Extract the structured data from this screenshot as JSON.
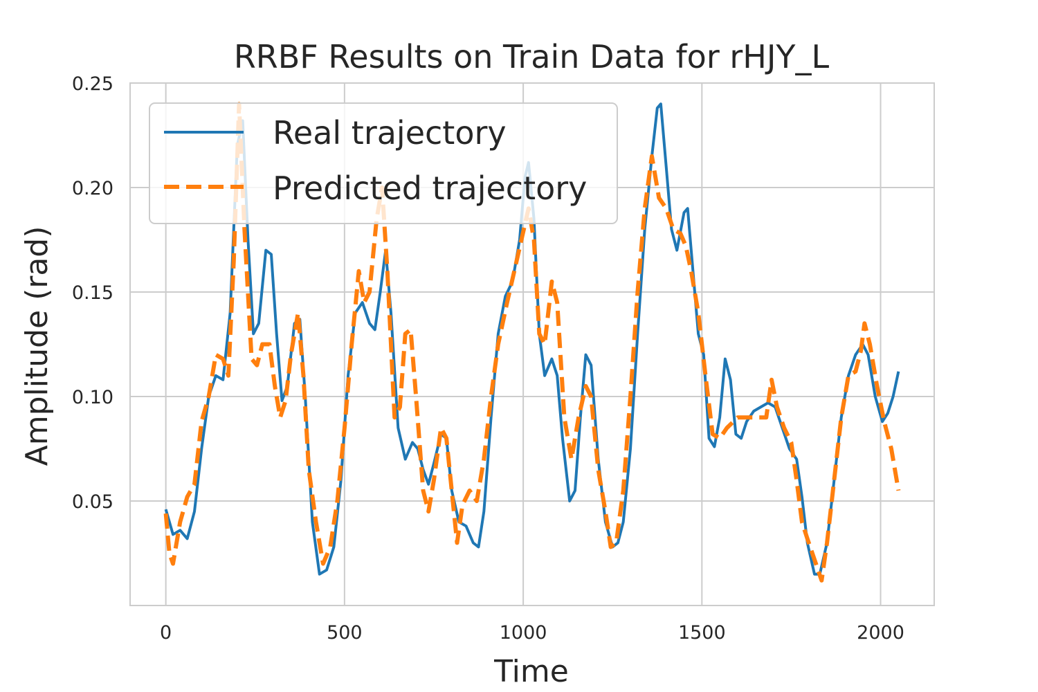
{
  "chart_data": {
    "type": "line",
    "title": "RRBF Results on Train Data for rHJY_L",
    "xlabel": "Time",
    "ylabel": "Amplitude (rad)",
    "xlim": [
      -100,
      2150
    ],
    "ylim": [
      0.0,
      0.25
    ],
    "xticks": [
      0,
      500,
      1000,
      1500,
      2000
    ],
    "yticks": [
      0.05,
      0.1,
      0.15,
      0.2,
      0.25
    ],
    "xtick_labels": [
      "0",
      "500",
      "1000",
      "1500",
      "2000"
    ],
    "ytick_labels": [
      "0.05",
      "0.10",
      "0.15",
      "0.20",
      "0.25"
    ],
    "grid": true,
    "legend_position": "top-left",
    "series": [
      {
        "name": "Real trajectory",
        "color": "#1f77b4",
        "style": "solid",
        "points": [
          [
            0,
            0.046
          ],
          [
            20,
            0.034
          ],
          [
            40,
            0.036
          ],
          [
            60,
            0.032
          ],
          [
            80,
            0.045
          ],
          [
            100,
            0.075
          ],
          [
            120,
            0.1
          ],
          [
            140,
            0.11
          ],
          [
            160,
            0.108
          ],
          [
            180,
            0.14
          ],
          [
            200,
            0.22
          ],
          [
            215,
            0.232
          ],
          [
            230,
            0.175
          ],
          [
            245,
            0.13
          ],
          [
            260,
            0.135
          ],
          [
            280,
            0.17
          ],
          [
            295,
            0.168
          ],
          [
            310,
            0.13
          ],
          [
            325,
            0.098
          ],
          [
            340,
            0.105
          ],
          [
            360,
            0.135
          ],
          [
            375,
            0.137
          ],
          [
            390,
            0.1
          ],
          [
            410,
            0.04
          ],
          [
            430,
            0.015
          ],
          [
            450,
            0.017
          ],
          [
            470,
            0.028
          ],
          [
            490,
            0.06
          ],
          [
            510,
            0.11
          ],
          [
            530,
            0.14
          ],
          [
            550,
            0.145
          ],
          [
            570,
            0.135
          ],
          [
            585,
            0.132
          ],
          [
            600,
            0.15
          ],
          [
            615,
            0.17
          ],
          [
            630,
            0.14
          ],
          [
            650,
            0.085
          ],
          [
            670,
            0.07
          ],
          [
            690,
            0.078
          ],
          [
            705,
            0.075
          ],
          [
            720,
            0.065
          ],
          [
            735,
            0.058
          ],
          [
            750,
            0.068
          ],
          [
            770,
            0.082
          ],
          [
            785,
            0.08
          ],
          [
            800,
            0.055
          ],
          [
            820,
            0.04
          ],
          [
            840,
            0.038
          ],
          [
            860,
            0.03
          ],
          [
            875,
            0.028
          ],
          [
            890,
            0.045
          ],
          [
            910,
            0.09
          ],
          [
            930,
            0.13
          ],
          [
            950,
            0.148
          ],
          [
            970,
            0.155
          ],
          [
            990,
            0.175
          ],
          [
            1005,
            0.205
          ],
          [
            1015,
            0.212
          ],
          [
            1030,
            0.185
          ],
          [
            1045,
            0.13
          ],
          [
            1060,
            0.11
          ],
          [
            1080,
            0.118
          ],
          [
            1095,
            0.11
          ],
          [
            1110,
            0.08
          ],
          [
            1130,
            0.05
          ],
          [
            1145,
            0.055
          ],
          [
            1160,
            0.09
          ],
          [
            1175,
            0.12
          ],
          [
            1190,
            0.115
          ],
          [
            1210,
            0.07
          ],
          [
            1230,
            0.04
          ],
          [
            1250,
            0.028
          ],
          [
            1265,
            0.03
          ],
          [
            1280,
            0.04
          ],
          [
            1300,
            0.075
          ],
          [
            1320,
            0.13
          ],
          [
            1340,
            0.18
          ],
          [
            1360,
            0.215
          ],
          [
            1375,
            0.238
          ],
          [
            1385,
            0.24
          ],
          [
            1400,
            0.21
          ],
          [
            1415,
            0.18
          ],
          [
            1430,
            0.17
          ],
          [
            1450,
            0.188
          ],
          [
            1460,
            0.19
          ],
          [
            1475,
            0.16
          ],
          [
            1490,
            0.13
          ],
          [
            1505,
            0.12
          ],
          [
            1520,
            0.08
          ],
          [
            1535,
            0.076
          ],
          [
            1550,
            0.09
          ],
          [
            1565,
            0.118
          ],
          [
            1580,
            0.108
          ],
          [
            1595,
            0.082
          ],
          [
            1610,
            0.08
          ],
          [
            1625,
            0.088
          ],
          [
            1645,
            0.093
          ],
          [
            1665,
            0.095
          ],
          [
            1685,
            0.097
          ],
          [
            1705,
            0.095
          ],
          [
            1725,
            0.085
          ],
          [
            1745,
            0.075
          ],
          [
            1765,
            0.07
          ],
          [
            1780,
            0.052
          ],
          [
            1795,
            0.03
          ],
          [
            1815,
            0.015
          ],
          [
            1830,
            0.015
          ],
          [
            1850,
            0.03
          ],
          [
            1870,
            0.06
          ],
          [
            1890,
            0.09
          ],
          [
            1910,
            0.11
          ],
          [
            1930,
            0.12
          ],
          [
            1950,
            0.125
          ],
          [
            1965,
            0.12
          ],
          [
            1985,
            0.1
          ],
          [
            2005,
            0.088
          ],
          [
            2020,
            0.092
          ],
          [
            2035,
            0.1
          ],
          [
            2050,
            0.112
          ]
        ]
      },
      {
        "name": "Predicted trajectory",
        "color": "#ff7f0e",
        "style": "dashed",
        "points": [
          [
            0,
            0.044
          ],
          [
            10,
            0.025
          ],
          [
            20,
            0.02
          ],
          [
            40,
            0.04
          ],
          [
            60,
            0.052
          ],
          [
            80,
            0.058
          ],
          [
            100,
            0.088
          ],
          [
            120,
            0.1
          ],
          [
            140,
            0.12
          ],
          [
            160,
            0.118
          ],
          [
            175,
            0.11
          ],
          [
            190,
            0.165
          ],
          [
            205,
            0.24
          ],
          [
            220,
            0.18
          ],
          [
            240,
            0.118
          ],
          [
            255,
            0.115
          ],
          [
            270,
            0.125
          ],
          [
            290,
            0.125
          ],
          [
            305,
            0.105
          ],
          [
            320,
            0.09
          ],
          [
            335,
            0.098
          ],
          [
            350,
            0.12
          ],
          [
            370,
            0.14
          ],
          [
            385,
            0.11
          ],
          [
            400,
            0.065
          ],
          [
            420,
            0.04
          ],
          [
            440,
            0.02
          ],
          [
            460,
            0.028
          ],
          [
            480,
            0.05
          ],
          [
            500,
            0.085
          ],
          [
            520,
            0.125
          ],
          [
            540,
            0.16
          ],
          [
            555,
            0.145
          ],
          [
            570,
            0.15
          ],
          [
            590,
            0.185
          ],
          [
            605,
            0.2
          ],
          [
            620,
            0.16
          ],
          [
            640,
            0.09
          ],
          [
            655,
            0.095
          ],
          [
            670,
            0.13
          ],
          [
            685,
            0.132
          ],
          [
            700,
            0.1
          ],
          [
            720,
            0.055
          ],
          [
            735,
            0.045
          ],
          [
            750,
            0.06
          ],
          [
            770,
            0.085
          ],
          [
            785,
            0.08
          ],
          [
            800,
            0.055
          ],
          [
            815,
            0.03
          ],
          [
            830,
            0.048
          ],
          [
            850,
            0.055
          ],
          [
            870,
            0.05
          ],
          [
            890,
            0.07
          ],
          [
            910,
            0.1
          ],
          [
            930,
            0.125
          ],
          [
            955,
            0.145
          ],
          [
            975,
            0.16
          ],
          [
            995,
            0.175
          ],
          [
            1015,
            0.19
          ],
          [
            1030,
            0.175
          ],
          [
            1045,
            0.13
          ],
          [
            1060,
            0.125
          ],
          [
            1080,
            0.155
          ],
          [
            1095,
            0.145
          ],
          [
            1115,
            0.09
          ],
          [
            1135,
            0.07
          ],
          [
            1155,
            0.09
          ],
          [
            1175,
            0.105
          ],
          [
            1190,
            0.1
          ],
          [
            1210,
            0.065
          ],
          [
            1230,
            0.045
          ],
          [
            1245,
            0.028
          ],
          [
            1260,
            0.03
          ],
          [
            1280,
            0.055
          ],
          [
            1300,
            0.1
          ],
          [
            1320,
            0.15
          ],
          [
            1340,
            0.19
          ],
          [
            1360,
            0.215
          ],
          [
            1380,
            0.195
          ],
          [
            1400,
            0.19
          ],
          [
            1420,
            0.18
          ],
          [
            1440,
            0.178
          ],
          [
            1455,
            0.172
          ],
          [
            1470,
            0.16
          ],
          [
            1490,
            0.14
          ],
          [
            1510,
            0.11
          ],
          [
            1530,
            0.082
          ],
          [
            1550,
            0.08
          ],
          [
            1570,
            0.085
          ],
          [
            1600,
            0.09
          ],
          [
            1630,
            0.09
          ],
          [
            1660,
            0.09
          ],
          [
            1680,
            0.09
          ],
          [
            1695,
            0.108
          ],
          [
            1710,
            0.095
          ],
          [
            1730,
            0.085
          ],
          [
            1750,
            0.078
          ],
          [
            1765,
            0.06
          ],
          [
            1780,
            0.04
          ],
          [
            1795,
            0.032
          ],
          [
            1815,
            0.022
          ],
          [
            1835,
            0.012
          ],
          [
            1850,
            0.03
          ],
          [
            1870,
            0.06
          ],
          [
            1890,
            0.09
          ],
          [
            1910,
            0.11
          ],
          [
            1930,
            0.112
          ],
          [
            1945,
            0.122
          ],
          [
            1955,
            0.135
          ],
          [
            1970,
            0.125
          ],
          [
            1990,
            0.105
          ],
          [
            2010,
            0.088
          ],
          [
            2030,
            0.075
          ],
          [
            2050,
            0.055
          ]
        ]
      }
    ]
  }
}
